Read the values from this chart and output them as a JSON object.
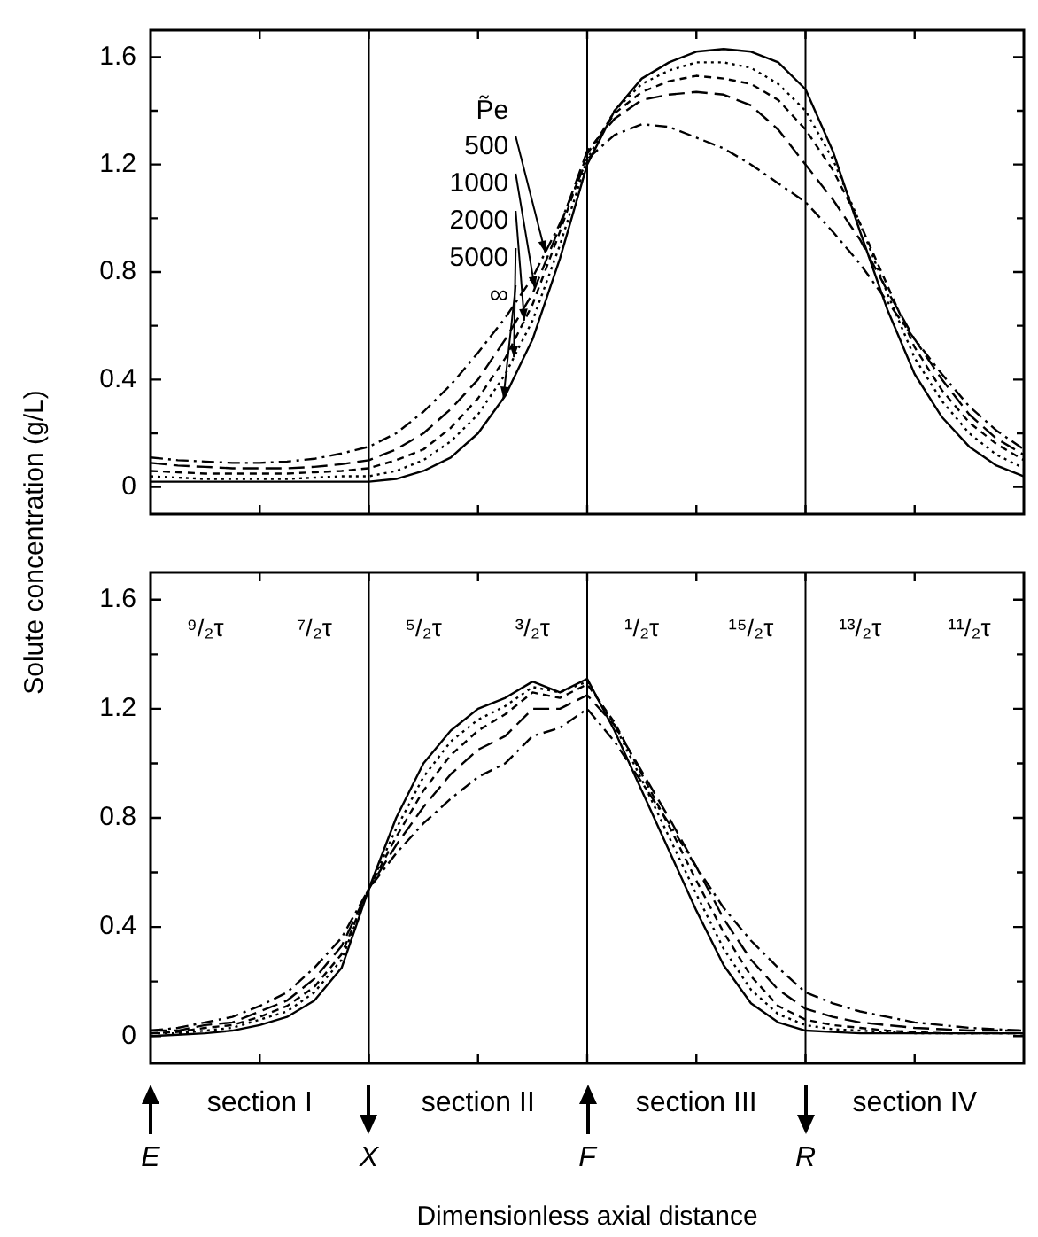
{
  "chart_data": [
    {
      "type": "line",
      "ylabel": "Solute concentration (g/L)",
      "legend_title": "P̃e",
      "legend": "top left",
      "tick_labels": "y",
      "categories": [
        "E",
        null,
        null,
        null,
        null,
        null,
        null,
        null,
        "X",
        null,
        null,
        null,
        null,
        null,
        null,
        null,
        "F",
        null,
        null,
        null,
        null,
        null,
        null,
        null,
        "R",
        null,
        null,
        null,
        null,
        null,
        null,
        null,
        null
      ],
      "series": [
        {
          "name": "500",
          "color": "#000000",
          "line_style": "dashed",
          "values": [
            0.11,
            0.1,
            0.095,
            0.09,
            0.09,
            0.095,
            0.105,
            0.125,
            0.15,
            0.2,
            0.28,
            0.38,
            0.5,
            0.63,
            0.78,
            0.98,
            1.22,
            1.31,
            1.35,
            1.34,
            1.3,
            1.26,
            1.2,
            1.13,
            1.06,
            0.95,
            0.83,
            0.69,
            0.55,
            0.42,
            0.3,
            0.21,
            0.14
          ]
        },
        {
          "name": "1000",
          "color": "#000000",
          "line_style": "dashed",
          "values": [
            0.09,
            0.08,
            0.075,
            0.07,
            0.07,
            0.07,
            0.075,
            0.085,
            0.1,
            0.14,
            0.2,
            0.29,
            0.4,
            0.55,
            0.72,
            0.97,
            1.25,
            1.37,
            1.44,
            1.46,
            1.47,
            1.46,
            1.42,
            1.33,
            1.2,
            1.07,
            0.92,
            0.73,
            0.55,
            0.4,
            0.27,
            0.18,
            0.12
          ]
        },
        {
          "name": "2000",
          "color": "#000000",
          "line_style": "dashed",
          "values": [
            0.06,
            0.055,
            0.05,
            0.05,
            0.05,
            0.05,
            0.055,
            0.06,
            0.07,
            0.1,
            0.14,
            0.22,
            0.33,
            0.48,
            0.68,
            0.95,
            1.24,
            1.39,
            1.47,
            1.51,
            1.53,
            1.52,
            1.5,
            1.44,
            1.33,
            1.18,
            0.98,
            0.75,
            0.52,
            0.36,
            0.24,
            0.16,
            0.1
          ]
        },
        {
          "name": "5000",
          "color": "#000000",
          "line_style": "dotted",
          "values": [
            0.04,
            0.035,
            0.03,
            0.03,
            0.03,
            0.03,
            0.035,
            0.04,
            0.04,
            0.06,
            0.1,
            0.17,
            0.27,
            0.42,
            0.62,
            0.9,
            1.22,
            1.4,
            1.5,
            1.55,
            1.58,
            1.58,
            1.56,
            1.5,
            1.4,
            1.22,
            0.98,
            0.72,
            0.48,
            0.32,
            0.2,
            0.12,
            0.07
          ]
        },
        {
          "name": "∞",
          "color": "#000000",
          "line_style": "solid",
          "values": [
            0.02,
            0.02,
            0.02,
            0.02,
            0.02,
            0.02,
            0.02,
            0.02,
            0.02,
            0.03,
            0.06,
            0.11,
            0.2,
            0.34,
            0.55,
            0.85,
            1.2,
            1.4,
            1.52,
            1.58,
            1.62,
            1.63,
            1.62,
            1.58,
            1.48,
            1.25,
            0.95,
            0.66,
            0.42,
            0.26,
            0.15,
            0.08,
            0.04
          ]
        }
      ],
      "ylim": [
        -0.1,
        1.7
      ],
      "yticks": [
        0,
        {
          "value": 0.2,
          "label": null
        },
        0.4,
        {
          "value": 0.6,
          "label": null
        },
        0.8,
        {
          "value": 1.0,
          "label": null
        },
        1.2,
        {
          "value": 1.4,
          "label": null
        },
        1.6
      ],
      "ref_lines": [
        {
          "axis": "x",
          "value": "X"
        },
        {
          "axis": "x",
          "value": "F"
        },
        {
          "axis": "x",
          "value": "R"
        }
      ]
    },
    {
      "type": "line",
      "xlabel": "Dimensionless axial distance",
      "categories": [
        "E",
        null,
        null,
        null,
        null,
        null,
        null,
        null,
        "X",
        null,
        null,
        null,
        null,
        null,
        null,
        null,
        "F",
        null,
        null,
        null,
        null,
        null,
        null,
        null,
        "R",
        null,
        null,
        null,
        null,
        null,
        null,
        null,
        null
      ],
      "series": [
        {
          "color": "#000000",
          "line_style": "dashed",
          "values": [
            0.02,
            0.03,
            0.05,
            0.07,
            0.11,
            0.16,
            0.25,
            0.36,
            0.54,
            0.67,
            0.78,
            0.87,
            0.95,
            1.0,
            1.1,
            1.13,
            1.2,
            1.08,
            0.93,
            0.78,
            0.62,
            0.47,
            0.35,
            0.25,
            0.16,
            0.12,
            0.09,
            0.07,
            0.05,
            0.04,
            0.03,
            0.025,
            0.02
          ]
        },
        {
          "color": "#000000",
          "line_style": "dashed",
          "values": [
            0.02,
            0.02,
            0.04,
            0.05,
            0.09,
            0.13,
            0.21,
            0.33,
            0.54,
            0.7,
            0.84,
            0.96,
            1.05,
            1.1,
            1.2,
            1.2,
            1.25,
            1.14,
            0.97,
            0.8,
            0.62,
            0.43,
            0.28,
            0.17,
            0.1,
            0.07,
            0.05,
            0.04,
            0.03,
            0.025,
            0.02,
            0.02,
            0.02
          ]
        },
        {
          "color": "#000000",
          "line_style": "dashed",
          "values": [
            0.01,
            0.015,
            0.03,
            0.04,
            0.07,
            0.11,
            0.18,
            0.3,
            0.54,
            0.73,
            0.9,
            1.03,
            1.12,
            1.18,
            1.26,
            1.24,
            1.29,
            1.15,
            0.96,
            0.77,
            0.57,
            0.38,
            0.22,
            0.11,
            0.06,
            0.04,
            0.03,
            0.02,
            0.015,
            0.01,
            0.01,
            0.01,
            0.01
          ]
        },
        {
          "color": "#000000",
          "line_style": "dotted",
          "values": [
            0.01,
            0.01,
            0.02,
            0.03,
            0.06,
            0.09,
            0.16,
            0.28,
            0.54,
            0.76,
            0.95,
            1.08,
            1.16,
            1.21,
            1.28,
            1.26,
            1.3,
            1.14,
            0.94,
            0.73,
            0.52,
            0.32,
            0.17,
            0.08,
            0.04,
            0.025,
            0.02,
            0.015,
            0.01,
            0.01,
            0.01,
            0.01,
            0.01
          ]
        },
        {
          "color": "#000000",
          "line_style": "solid",
          "values": [
            0,
            0.005,
            0.01,
            0.02,
            0.04,
            0.07,
            0.13,
            0.25,
            0.54,
            0.8,
            1.0,
            1.12,
            1.2,
            1.24,
            1.3,
            1.26,
            1.31,
            1.12,
            0.9,
            0.68,
            0.46,
            0.26,
            0.12,
            0.05,
            0.02,
            0.015,
            0.01,
            0.01,
            0.01,
            0.01,
            0.01,
            0.01,
            0.01
          ]
        }
      ],
      "ylim": [
        -0.1,
        1.7
      ],
      "yticks": [
        0,
        {
          "value": 0.2,
          "label": null
        },
        0.4,
        {
          "value": 0.6,
          "label": null
        },
        0.8,
        {
          "value": 1.0,
          "label": null
        },
        1.2,
        {
          "value": 1.4,
          "label": null
        },
        1.6
      ],
      "annotations": [
        "⁹/₂τ",
        "⁷/₂τ",
        "⁵/₂τ",
        "³/₂τ",
        "¹/₂τ",
        "¹⁵/₂τ",
        "¹³/₂τ",
        "¹¹/₂τ",
        "section I",
        "section II",
        "section III",
        "section IV"
      ],
      "ref_lines": [
        {
          "axis": "x",
          "value": "X"
        },
        {
          "axis": "x",
          "value": "F"
        },
        {
          "axis": "x",
          "value": "R"
        }
      ]
    }
  ]
}
